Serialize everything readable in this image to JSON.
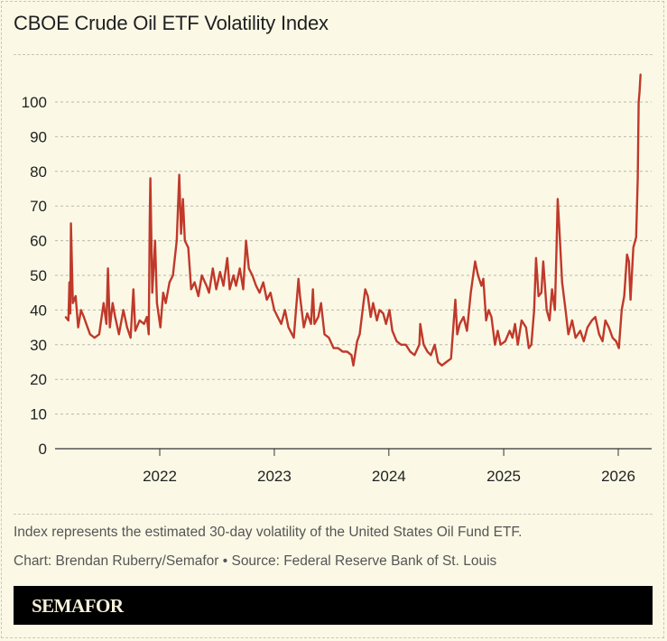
{
  "chart_data": {
    "type": "line",
    "title": "CBOE Crude Oil ETF Volatility Index",
    "xlabel": "",
    "ylabel": "",
    "ylim": [
      0,
      100
    ],
    "yticks": [
      0,
      10,
      20,
      30,
      40,
      50,
      60,
      70,
      80,
      90,
      100
    ],
    "xticks": [
      "2022",
      "2023",
      "2024",
      "2025",
      "2026"
    ],
    "grid": true,
    "line_color": "#c0392b",
    "series": [
      {
        "points": [
          [
            "2021-03-07",
            38
          ],
          [
            "2021-03-16",
            37
          ],
          [
            "2021-03-19",
            48
          ],
          [
            "2021-03-22",
            39
          ],
          [
            "2021-03-24",
            65
          ],
          [
            "2021-03-30",
            42
          ],
          [
            "2021-04-08",
            44
          ],
          [
            "2021-04-16",
            35
          ],
          [
            "2021-04-25",
            40
          ],
          [
            "2021-05-04",
            38
          ],
          [
            "2021-05-12",
            36
          ],
          [
            "2021-05-24",
            33
          ],
          [
            "2021-06-07",
            32
          ],
          [
            "2021-06-22",
            33
          ],
          [
            "2021-07-06",
            42
          ],
          [
            "2021-07-15",
            36
          ],
          [
            "2021-07-20",
            52
          ],
          [
            "2021-07-26",
            35
          ],
          [
            "2021-08-04",
            42
          ],
          [
            "2021-08-12",
            38
          ],
          [
            "2021-08-24",
            33
          ],
          [
            "2021-09-07",
            40
          ],
          [
            "2021-09-19",
            35
          ],
          [
            "2021-09-30",
            32
          ],
          [
            "2021-10-09",
            46
          ],
          [
            "2021-10-15",
            34
          ],
          [
            "2021-10-29",
            37
          ],
          [
            "2021-11-12",
            36
          ],
          [
            "2021-11-21",
            38
          ],
          [
            "2021-11-27",
            33
          ],
          [
            "2021-11-30",
            66
          ],
          [
            "2021-12-02",
            78
          ],
          [
            "2021-12-08",
            45
          ],
          [
            "2021-12-17",
            60
          ],
          [
            "2021-12-23",
            42
          ],
          [
            "2022-01-03",
            35
          ],
          [
            "2022-01-12",
            45
          ],
          [
            "2022-01-20",
            42
          ],
          [
            "2022-02-01",
            48
          ],
          [
            "2022-02-12",
            50
          ],
          [
            "2022-02-24",
            60
          ],
          [
            "2022-03-04",
            79
          ],
          [
            "2022-03-10",
            62
          ],
          [
            "2022-03-16",
            72
          ],
          [
            "2022-03-22",
            60
          ],
          [
            "2022-04-02",
            58
          ],
          [
            "2022-04-11",
            46
          ],
          [
            "2022-04-22",
            48
          ],
          [
            "2022-05-04",
            44
          ],
          [
            "2022-05-15",
            50
          ],
          [
            "2022-05-30",
            47
          ],
          [
            "2022-06-07",
            45
          ],
          [
            "2022-06-19",
            52
          ],
          [
            "2022-06-30",
            46
          ],
          [
            "2022-07-12",
            51
          ],
          [
            "2022-07-23",
            47
          ],
          [
            "2022-08-04",
            55
          ],
          [
            "2022-08-12",
            46
          ],
          [
            "2022-08-24",
            50
          ],
          [
            "2022-09-01",
            47
          ],
          [
            "2022-09-13",
            52
          ],
          [
            "2022-09-24",
            46
          ],
          [
            "2022-10-03",
            60
          ],
          [
            "2022-10-12",
            52
          ],
          [
            "2022-10-23",
            50
          ],
          [
            "2022-11-04",
            47
          ],
          [
            "2022-11-15",
            45
          ],
          [
            "2022-11-27",
            48
          ],
          [
            "2022-12-08",
            43
          ],
          [
            "2022-12-20",
            45
          ],
          [
            "2023-01-01",
            40
          ],
          [
            "2023-01-12",
            38
          ],
          [
            "2023-01-23",
            36
          ],
          [
            "2023-02-04",
            40
          ],
          [
            "2023-02-15",
            35
          ],
          [
            "2023-03-04",
            32
          ],
          [
            "2023-03-19",
            49
          ],
          [
            "2023-03-24",
            44
          ],
          [
            "2023-04-05",
            35
          ],
          [
            "2023-04-16",
            39
          ],
          [
            "2023-04-28",
            36
          ],
          [
            "2023-05-04",
            46
          ],
          [
            "2023-05-09",
            36
          ],
          [
            "2023-05-21",
            38
          ],
          [
            "2023-05-30",
            42
          ],
          [
            "2023-06-10",
            33
          ],
          [
            "2023-06-24",
            32
          ],
          [
            "2023-07-09",
            29
          ],
          [
            "2023-07-23",
            29
          ],
          [
            "2023-08-07",
            28
          ],
          [
            "2023-08-21",
            28
          ],
          [
            "2023-09-04",
            27
          ],
          [
            "2023-09-10",
            24
          ],
          [
            "2023-09-22",
            31
          ],
          [
            "2023-09-30",
            33
          ],
          [
            "2023-10-12",
            42
          ],
          [
            "2023-10-18",
            46
          ],
          [
            "2023-10-26",
            44
          ],
          [
            "2023-11-04",
            38
          ],
          [
            "2023-11-12",
            42
          ],
          [
            "2023-11-24",
            37
          ],
          [
            "2023-12-02",
            40
          ],
          [
            "2023-12-14",
            39
          ],
          [
            "2023-12-23",
            36
          ],
          [
            "2024-01-03",
            40
          ],
          [
            "2024-01-12",
            34
          ],
          [
            "2024-01-26",
            31
          ],
          [
            "2024-02-09",
            30
          ],
          [
            "2024-02-24",
            30
          ],
          [
            "2024-03-09",
            28
          ],
          [
            "2024-03-23",
            27
          ],
          [
            "2024-04-07",
            30
          ],
          [
            "2024-04-10",
            36
          ],
          [
            "2024-04-21",
            30
          ],
          [
            "2024-05-03",
            28
          ],
          [
            "2024-05-14",
            27
          ],
          [
            "2024-05-26",
            30
          ],
          [
            "2024-06-06",
            25
          ],
          [
            "2024-06-18",
            24
          ],
          [
            "2024-07-02",
            25
          ],
          [
            "2024-07-17",
            26
          ],
          [
            "2024-07-31",
            43
          ],
          [
            "2024-08-06",
            33
          ],
          [
            "2024-08-14",
            36
          ],
          [
            "2024-08-26",
            38
          ],
          [
            "2024-09-06",
            34
          ],
          [
            "2024-09-18",
            45
          ],
          [
            "2024-10-02",
            54
          ],
          [
            "2024-10-11",
            50
          ],
          [
            "2024-10-22",
            47
          ],
          [
            "2024-10-28",
            49
          ],
          [
            "2024-11-06",
            37
          ],
          [
            "2024-11-14",
            40
          ],
          [
            "2024-11-23",
            38
          ],
          [
            "2024-12-04",
            30
          ],
          [
            "2024-12-13",
            34
          ],
          [
            "2024-12-22",
            30
          ],
          [
            "2025-01-06",
            31
          ],
          [
            "2025-01-20",
            34
          ],
          [
            "2025-01-29",
            32
          ],
          [
            "2025-02-06",
            36
          ],
          [
            "2025-02-15",
            30
          ],
          [
            "2025-02-27",
            37
          ],
          [
            "2025-03-13",
            35
          ],
          [
            "2025-03-22",
            29
          ],
          [
            "2025-03-30",
            30
          ],
          [
            "2025-04-08",
            40
          ],
          [
            "2025-04-14",
            55
          ],
          [
            "2025-04-22",
            44
          ],
          [
            "2025-05-01",
            45
          ],
          [
            "2025-05-07",
            54
          ],
          [
            "2025-05-18",
            40
          ],
          [
            "2025-05-27",
            37
          ],
          [
            "2025-06-04",
            46
          ],
          [
            "2025-06-13",
            40
          ],
          [
            "2025-06-19",
            60
          ],
          [
            "2025-06-22",
            72
          ],
          [
            "2025-06-27",
            64
          ],
          [
            "2025-07-06",
            48
          ],
          [
            "2025-07-17",
            40
          ],
          [
            "2025-07-26",
            33
          ],
          [
            "2025-08-07",
            37
          ],
          [
            "2025-08-18",
            32
          ],
          [
            "2025-09-02",
            34
          ],
          [
            "2025-09-13",
            31
          ],
          [
            "2025-09-25",
            35
          ],
          [
            "2025-10-09",
            37
          ],
          [
            "2025-10-20",
            38
          ],
          [
            "2025-11-01",
            33
          ],
          [
            "2025-11-12",
            31
          ],
          [
            "2025-11-21",
            37
          ],
          [
            "2025-12-02",
            35
          ],
          [
            "2025-12-14",
            32
          ],
          [
            "2025-12-25",
            31
          ],
          [
            "2026-01-03",
            29
          ],
          [
            "2026-01-12",
            40
          ],
          [
            "2026-01-20",
            44
          ],
          [
            "2026-01-29",
            56
          ],
          [
            "2026-02-04",
            54
          ],
          [
            "2026-02-09",
            43
          ],
          [
            "2026-02-18",
            58
          ],
          [
            "2026-02-27",
            61
          ],
          [
            "2026-03-04",
            78
          ],
          [
            "2026-03-07",
            100
          ],
          [
            "2026-03-10",
            103
          ],
          [
            "2026-03-13",
            108
          ]
        ]
      }
    ],
    "notes": [
      "Index represents the estimated 30-day volatility of the United States Oil Fund ETF.",
      "Chart: Brendan Ruberry/Semafor • Source: Federal Reserve Bank of St. Louis"
    ],
    "brand": "SEMAFOR"
  }
}
